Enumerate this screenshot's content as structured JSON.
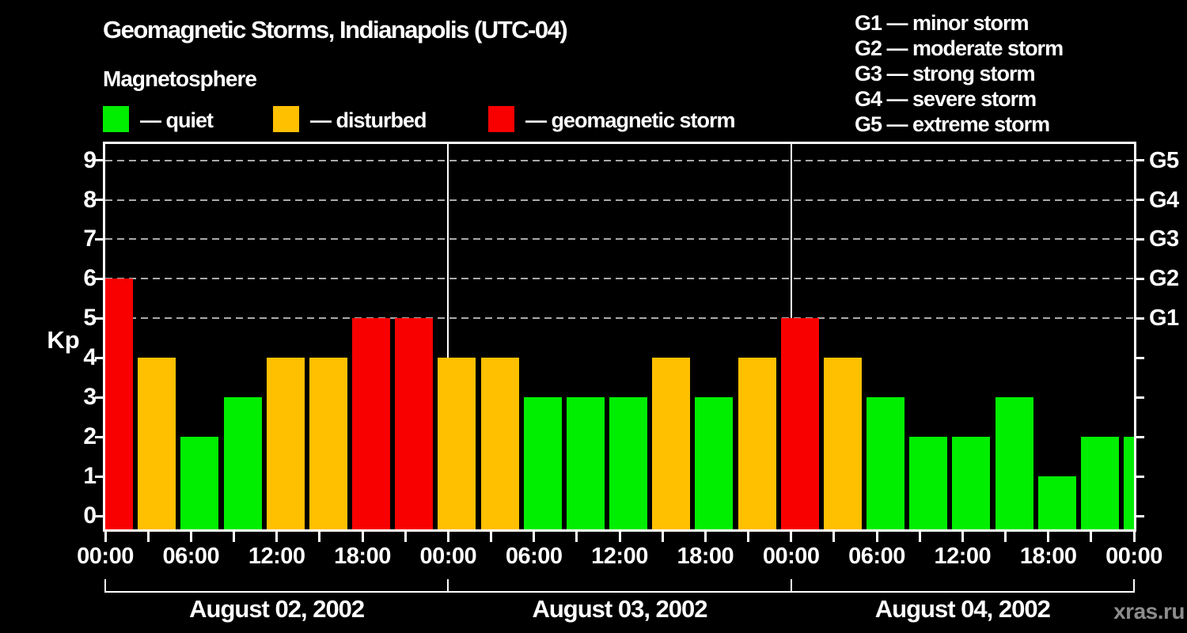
{
  "title": "Geomagnetic Storms, Indianapolis (UTC-04)",
  "subtitle": "Magnetosphere",
  "watermark": "xras.ru",
  "condition_legend": [
    {
      "key": "quiet",
      "label": "— quiet",
      "color": "#00ee00"
    },
    {
      "key": "disturbed",
      "label": "— disturbed",
      "color": "#ffc000"
    },
    {
      "key": "storm",
      "label": "— geomagnetic storm",
      "color": "#f80000"
    }
  ],
  "storm_scale_legend": [
    "G1 — minor storm",
    "G2 — moderate storm",
    "G3 — strong storm",
    "G4 — severe storm",
    "G5 — extreme storm"
  ],
  "chart_data": {
    "type": "bar",
    "title": "Geomagnetic Storms, Indianapolis (UTC-04)",
    "subtitle": "Magnetosphere",
    "ylabel": "Kp",
    "ylim": [
      0,
      9
    ],
    "yticks": [
      0,
      1,
      2,
      3,
      4,
      5,
      6,
      7,
      8,
      9
    ],
    "gridlines_at_kp": [
      5,
      6,
      7,
      8,
      9
    ],
    "grid_style": "dashed",
    "right_axis": [
      {
        "kp": 5,
        "label": "G1"
      },
      {
        "kp": 6,
        "label": "G2"
      },
      {
        "kp": 7,
        "label": "G3"
      },
      {
        "kp": 8,
        "label": "G4"
      },
      {
        "kp": 9,
        "label": "G5"
      }
    ],
    "slot_hours": 3,
    "x_tick_labels": [
      "00:00",
      "06:00",
      "12:00",
      "18:00",
      "00:00",
      "06:00",
      "12:00",
      "18:00",
      "00:00",
      "06:00",
      "12:00",
      "18:00",
      "00:00"
    ],
    "days": [
      {
        "date": "August 02, 2002",
        "kp_values": [
          6,
          4,
          2,
          3,
          4,
          4,
          5,
          5
        ]
      },
      {
        "date": "August 03, 2002",
        "kp_values": [
          4,
          4,
          3,
          3,
          3,
          4,
          3,
          4
        ]
      },
      {
        "date": "August 04, 2002",
        "kp_values": [
          5,
          4,
          3,
          2,
          2,
          3,
          1,
          2
        ]
      }
    ],
    "partial_next_value": 2,
    "category_rules": {
      "quiet_kp_max": 3,
      "disturbed_kp": 4,
      "storm_kp_min": 5
    },
    "colors": {
      "quiet": "#00ee00",
      "disturbed": "#ffc000",
      "storm": "#f80000",
      "gridline": "#aaaaaa",
      "axis": "#ffffff",
      "background": "#000000",
      "watermark": "#8c8c8c"
    }
  }
}
